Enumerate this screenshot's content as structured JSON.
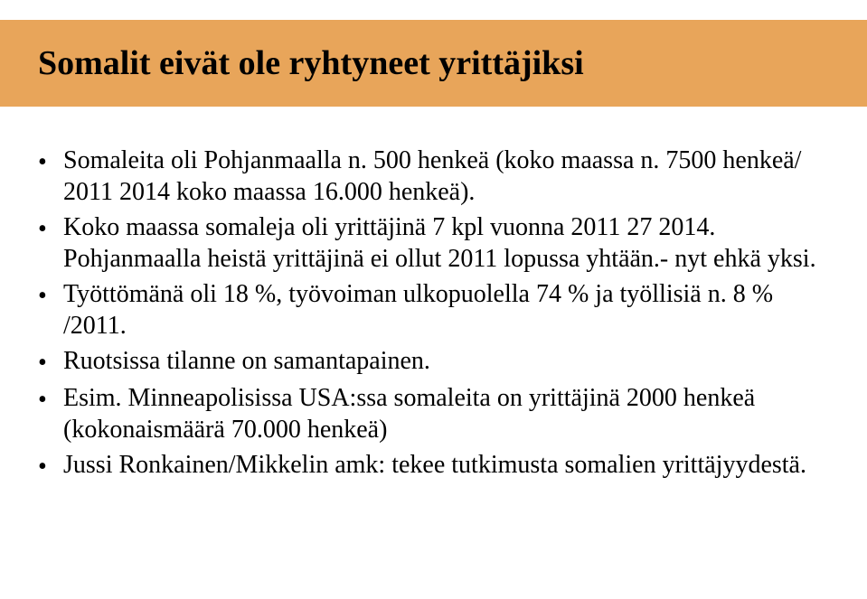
{
  "slide": {
    "title": "Somalit eivät ole ryhtyneet yrittäjiksi",
    "title_band_color": "#e8a55a",
    "title_fontsize": 38,
    "background_color": "#ffffff",
    "body_fontsize": 28,
    "text_color": "#000000",
    "bullets": [
      "Somaleita oli Pohjanmaalla n. 500 henkeä (koko maassa n. 7500 henkeä/ 2011 2014 koko maassa 16.000 henkeä).",
      "Koko maassa somaleja oli yrittäjinä 7 kpl vuonna 2011 27 2014. Pohjanmaalla heistä yrittäjinä ei ollut 2011 lopussa yhtään.- nyt ehkä yksi.",
      "Työttömänä oli 18 %, työvoiman ulkopuolella 74 % ja työllisiä n. 8 % /2011.",
      "Ruotsissa tilanne on samantapainen.",
      "Esim. Minneapolisissa USA:ssa somaleita on yrittäjinä 2000 henkeä (kokonaismäärä 70.000 henkeä)",
      "Jussi Ronkainen/Mikkelin amk: tekee tutkimusta somalien yrittäjyydestä."
    ]
  }
}
